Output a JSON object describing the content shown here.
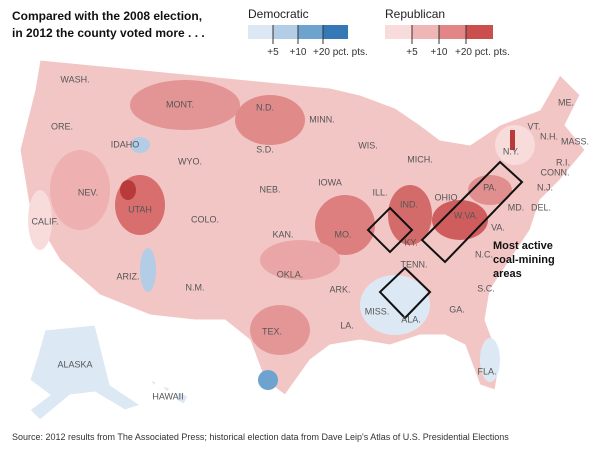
{
  "title": [
    "Compared with the 2008 election,",
    "in 2012 the county voted more . . ."
  ],
  "legend": {
    "democratic": {
      "title": "Democratic",
      "ticks": [
        "+5",
        "+10",
        "+20 pct. pts."
      ]
    },
    "republican": {
      "title": "Republican",
      "ticks": [
        "+5",
        "+10",
        "+20 pct. pts."
      ]
    }
  },
  "states": [
    "WASH.",
    "ORE.",
    "CALIF.",
    "NEV.",
    "IDAHO",
    "MONT.",
    "WYO.",
    "UTAH",
    "ARIZ.",
    "COLO.",
    "N.M.",
    "N.D.",
    "S.D.",
    "NEB.",
    "KAN.",
    "OKLA.",
    "TEX.",
    "MINN.",
    "IOWA",
    "MO.",
    "ARK.",
    "LA.",
    "WIS.",
    "ILL.",
    "MICH.",
    "IND.",
    "KY.",
    "TENN.",
    "MISS.",
    "ALA.",
    "GA.",
    "FLA.",
    "S.C.",
    "N.C.",
    "VA.",
    "W.VA.",
    "OHIO",
    "PA.",
    "MD.",
    "DEL.",
    "N.J.",
    "N.Y.",
    "VT.",
    "N.H.",
    "ME.",
    "MASS.",
    "R.I.",
    "CONN.",
    "ALASKA",
    "HAWAII"
  ],
  "annotation": [
    "Most active",
    "coal-mining",
    "areas"
  ],
  "source": "Source: 2012 results from The Associated Press; historical election data from Dave Leip's Atlas of U.S. Presidential Elections"
}
